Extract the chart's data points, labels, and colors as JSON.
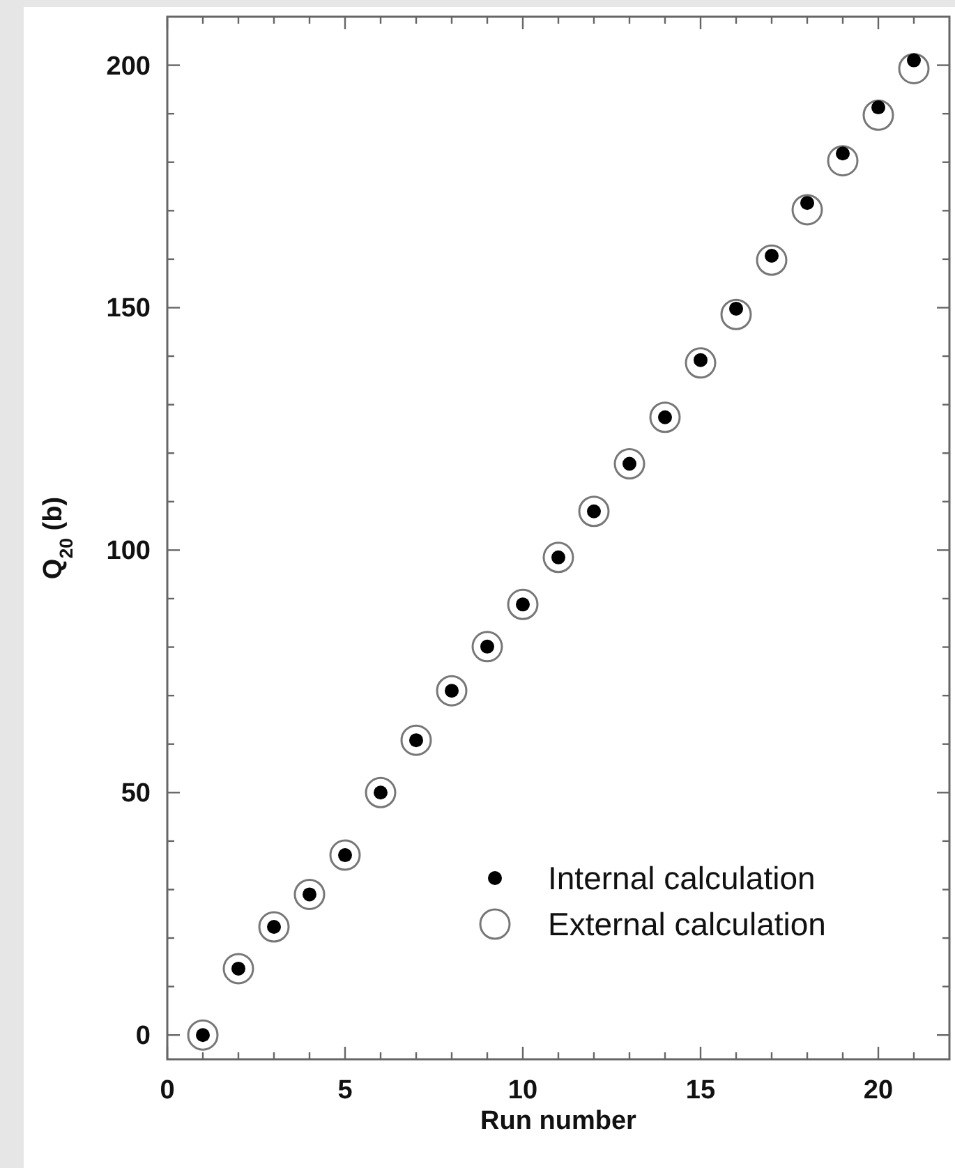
{
  "chart_data": {
    "type": "scatter",
    "xlabel": "Run number",
    "ylabel": "Q$_{20}$ (b)",
    "x": [
      1,
      2,
      3,
      4,
      5,
      6,
      7,
      8,
      9,
      10,
      11,
      12,
      13,
      14,
      15,
      16,
      17,
      18,
      19,
      20,
      21
    ],
    "series": [
      {
        "name": "Internal calculation",
        "color": "#000000",
        "values": [
          0,
          13.7,
          22.3,
          29,
          37.1,
          50,
          60.8,
          71,
          80.1,
          88.8,
          98.5,
          108,
          117.8,
          127.4,
          139.2,
          149.8,
          160.7,
          171.6,
          181.8,
          191.3,
          201
        ]
      },
      {
        "name": "External calculation",
        "color": "#ffffff",
        "values": [
          0,
          13.7,
          22.3,
          29,
          37.1,
          50,
          60.8,
          71,
          80.1,
          88.8,
          98.5,
          108,
          117.8,
          127.4,
          138.6,
          148.6,
          159.8,
          170.2,
          180.3,
          189.7,
          199.3
        ]
      }
    ],
    "xlim": [
      0,
      22
    ],
    "xticks": [
      0,
      {
        "value": 1,
        "label": null
      },
      {
        "value": 2,
        "label": null
      },
      {
        "value": 3,
        "label": null
      },
      {
        "value": 4,
        "label": null
      },
      5,
      {
        "value": 6,
        "label": null
      },
      {
        "value": 7,
        "label": null
      },
      {
        "value": 8,
        "label": null
      },
      {
        "value": 9,
        "label": null
      },
      10,
      {
        "value": 11,
        "label": null
      },
      {
        "value": 12,
        "label": null
      },
      {
        "value": 13,
        "label": null
      },
      {
        "value": 14,
        "label": null
      },
      15,
      {
        "value": 16,
        "label": null
      },
      {
        "value": 17,
        "label": null
      },
      {
        "value": 18,
        "label": null
      },
      {
        "value": 19,
        "label": null
      },
      20,
      {
        "value": 21,
        "label": null
      }
    ],
    "ylim": [
      -5,
      210
    ],
    "yticks": [
      0,
      {
        "value": 10,
        "label": null
      },
      {
        "value": 20,
        "label": null
      },
      {
        "value": 30,
        "label": null
      },
      {
        "value": 40,
        "label": null
      },
      50,
      {
        "value": 60,
        "label": null
      },
      {
        "value": 70,
        "label": null
      },
      {
        "value": 80,
        "label": null
      },
      {
        "value": 90,
        "label": null
      },
      100,
      {
        "value": 110,
        "label": null
      },
      {
        "value": 120,
        "label": null
      },
      {
        "value": 130,
        "label": null
      },
      {
        "value": 140,
        "label": null
      },
      150,
      {
        "value": 160,
        "label": null
      },
      {
        "value": 170,
        "label": null
      },
      {
        "value": 180,
        "label": null
      },
      {
        "value": 190,
        "label": null
      },
      200
    ],
    "marker": "circle",
    "legend": "bottom right",
    "grid": false
  }
}
